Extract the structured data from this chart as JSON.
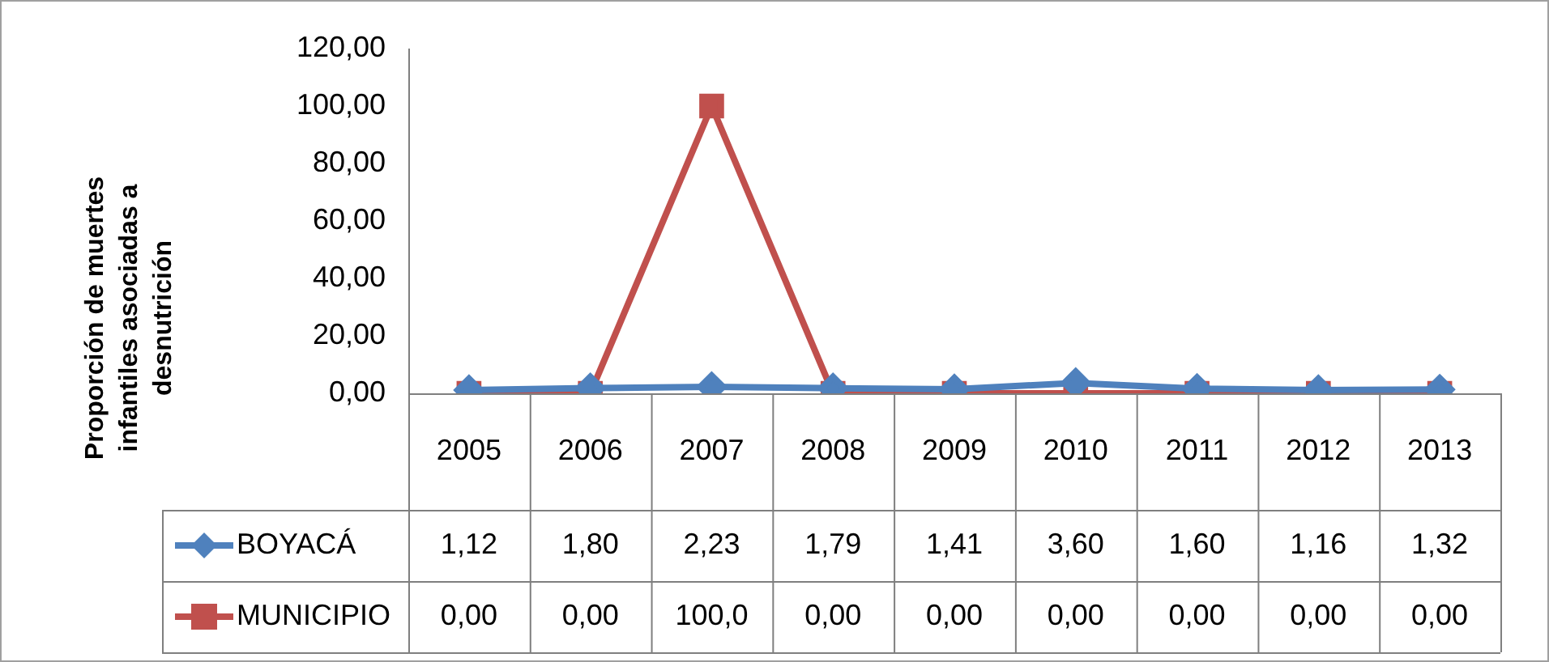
{
  "chart_data": {
    "type": "line",
    "ylabel": "Proporción de muertes infantiles asociadas a desnutrición",
    "categories": [
      "2005",
      "2006",
      "2007",
      "2008",
      "2009",
      "2010",
      "2011",
      "2012",
      "2013"
    ],
    "series": [
      {
        "name": "BOYACÁ",
        "color": "#4f81bd",
        "marker": "diamond",
        "values": [
          1.12,
          1.8,
          2.23,
          1.79,
          1.41,
          3.6,
          1.6,
          1.16,
          1.32
        ],
        "value_labels": [
          "1,12",
          "1,80",
          "2,23",
          "1,79",
          "1,41",
          "3,60",
          "1,60",
          "1,16",
          "1,32"
        ]
      },
      {
        "name": "MUNICIPIO",
        "color": "#c0504d",
        "marker": "square",
        "values": [
          0,
          0,
          100,
          0,
          0,
          0,
          0,
          0,
          0
        ],
        "value_labels": [
          "0,00",
          "0,00",
          "100,0",
          "0,00",
          "0,00",
          "0,00",
          "0,00",
          "0,00",
          "0,00"
        ]
      }
    ],
    "ylim": [
      0,
      120
    ],
    "yticks": [
      {
        "value": 0,
        "label": "0,00"
      },
      {
        "value": 20,
        "label": "20,00"
      },
      {
        "value": 40,
        "label": "40,00"
      },
      {
        "value": 60,
        "label": "60,00"
      },
      {
        "value": 80,
        "label": "80,00"
      },
      {
        "value": 100,
        "label": "100,00"
      },
      {
        "value": 120,
        "label": "120,00"
      }
    ],
    "grid": false,
    "legend": "bottom",
    "line_style": "solid"
  }
}
